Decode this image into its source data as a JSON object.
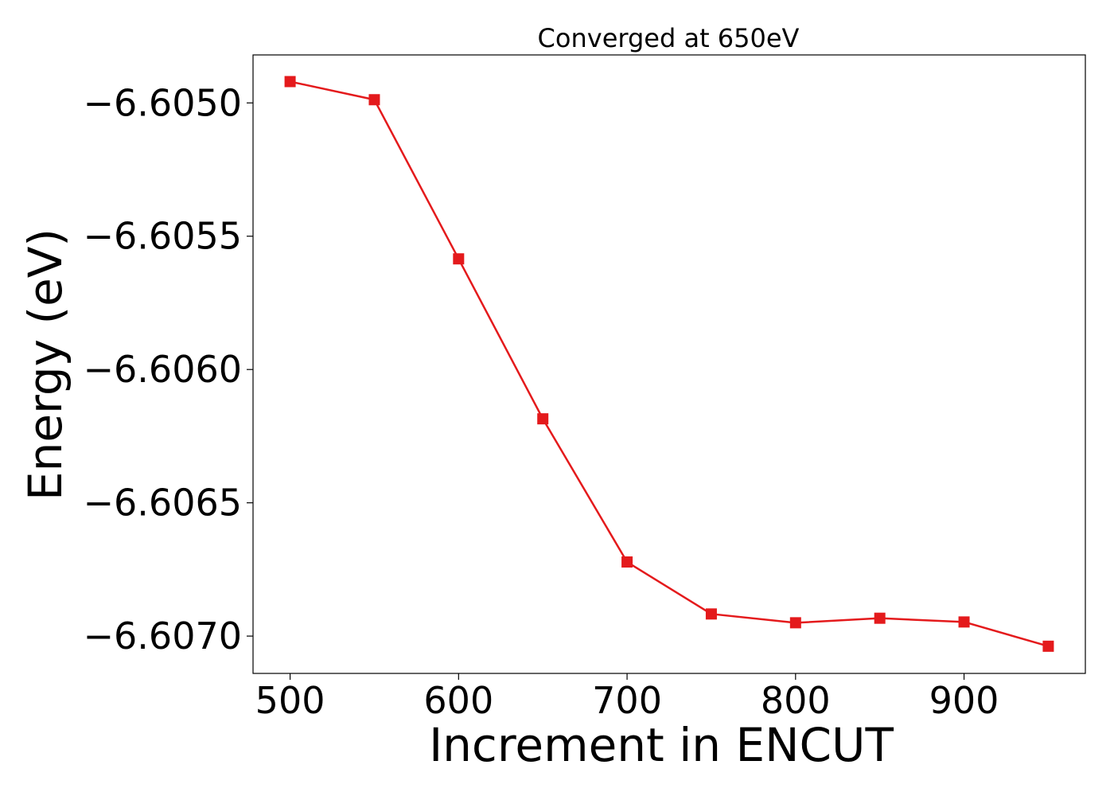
{
  "chart_data": {
    "type": "line",
    "title": "Converged at 650eV",
    "xlabel": "Increment in ENCUT",
    "ylabel": "Energy (eV)",
    "xlim": [
      478,
      972
    ],
    "ylim": [
      -6.60714,
      -6.60482
    ],
    "grid": false,
    "legend": "none",
    "x_ticks": [
      500,
      600,
      700,
      800,
      900
    ],
    "x_tick_labels": [
      "500",
      "600",
      "700",
      "800",
      "900"
    ],
    "y_ticks": [
      -6.605,
      -6.6055,
      -6.606,
      -6.6065,
      -6.607
    ],
    "y_tick_labels": [
      "−6.6050",
      "−6.6055",
      "−6.6060",
      "−6.6065",
      "−6.6070"
    ],
    "series": [
      {
        "color": "#e41a1c",
        "marker": "square",
        "x": [
          500,
          550,
          600,
          650,
          700,
          750,
          800,
          850,
          900,
          950
        ],
        "y": [
          -6.60492,
          -6.604988,
          -6.605585,
          -6.606185,
          -6.606722,
          -6.606917,
          -6.60695,
          -6.606933,
          -6.606947,
          -6.607038
        ]
      }
    ]
  }
}
